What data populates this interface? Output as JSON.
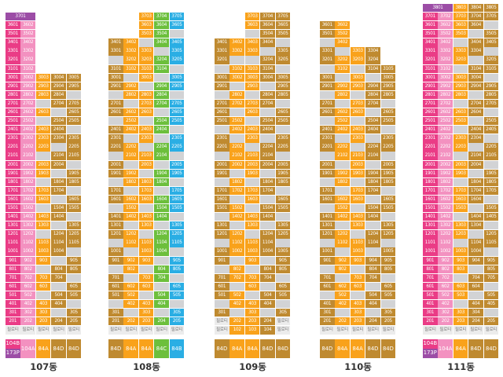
{
  "colors": {
    "pink": "#ea3c86",
    "lightpink": "#f391c0",
    "purple": "#9c4da6",
    "orange": "#f9a21b",
    "brown": "#bf8a30",
    "green": "#6cbf3c",
    "blue": "#2aaee4",
    "grey": "#d2d3d5"
  },
  "pilotis_label": "필로티",
  "buildings": [
    {
      "name": "107동",
      "spans": [
        {
          "label": "3701",
          "floor": 37,
          "cols": [
            0,
            1
          ],
          "color": "purple"
        }
      ],
      "columns": [
        {
          "top": 36,
          "color": "pink",
          "cells": "FFFFFFFFFFFFFFFFFFFFFFFFFFFFFFFFFFFP"
        },
        {
          "top": 36,
          "color": "lightpink",
          "cells": "FFFFFFFFFFFFFFFFFFFFFFFFFFFFFFFFFFFP"
        },
        {
          "top": 30,
          "color": "orange",
          "cells": "FFFGFGFFFGFFGFFGFFGFFFGFFGFFFP"
        },
        {
          "top": 30,
          "color": "brown",
          "cells": "FFFFGFFFGFFGFFGFFGFFFGFFGFFGFP"
        },
        {
          "top": 30,
          "color": "brown",
          "cells": "FFGFFFGFFFGFFGFFGFFFGFFGFFGFFP"
        }
      ],
      "types": [
        {
          "labels": [
            "104B",
            "173P"
          ],
          "colors": [
            "pink",
            "purple"
          ]
        },
        {
          "labels": [
            "104A"
          ],
          "colors": [
            "lightpink"
          ]
        },
        {
          "labels": [
            "84A"
          ],
          "colors": [
            "orange"
          ]
        },
        {
          "labels": [
            "84D"
          ],
          "colors": [
            "brown"
          ]
        },
        {
          "labels": [
            "84D"
          ],
          "colors": [
            "brown"
          ]
        }
      ]
    },
    {
      "name": "108동",
      "spans": [],
      "columns": [
        {
          "top": 34,
          "color": "brown",
          "cells": "FFGFFFGFFGFFFGFFGFFGFFFGFFGFFFGFFP"
        },
        {
          "top": 34,
          "color": "orange",
          "cells": "FFFFGFFGFFFGFFGFFGFFFGFFGFFGFFFGFP"
        },
        {
          "top": 37,
          "color": "orange",
          "cells": "FFFGFFFFGFFFGFFGFFGFFFGFFGFFFGFFGFFFP"
        },
        {
          "top": 37,
          "color": "green",
          "cells": "FFFFGFFGFFFGFFGFFGFFGFFFGFFFGFFGFFGFP"
        },
        {
          "top": 37,
          "color": "blue",
          "cells": "FFGFFFGFFGFFFGFFGFFGFFFGFFFGFFGFFGFFP"
        }
      ],
      "types": [
        {
          "labels": [
            "84D"
          ],
          "colors": [
            "brown"
          ]
        },
        {
          "labels": [
            "84A"
          ],
          "colors": [
            "orange"
          ]
        },
        {
          "labels": [
            "84A"
          ],
          "colors": [
            "orange"
          ]
        },
        {
          "labels": [
            "84C"
          ],
          "colors": [
            "green"
          ]
        },
        {
          "labels": [
            "84B"
          ],
          "colors": [
            "blue"
          ]
        }
      ]
    },
    {
      "name": "109동",
      "spans": [],
      "columns": [
        {
          "top": 34,
          "color": "brown",
          "cells": "FFFGFFGFFFGFFGFFGFFFGFFGFFGFFFGFPP"
        },
        {
          "top": 34,
          "color": "orange",
          "cells": "FFGFFGFFGFFGFFFGFFGFFGFFFGFFGFFGFF"
        },
        {
          "top": 37,
          "color": "orange",
          "cells": "FFGFFGFFFGFFGFFGFFFGFFGFFGFFFGFFGFFFF"
        },
        {
          "top": 37,
          "color": "brown",
          "cells": "FFFFGFFFGFFGFFGFFFGFFGFFGFFFGFFGFFGFF"
        },
        {
          "top": 37,
          "color": "brown",
          "cells": "FFFGFFGFFFGFFGFFGFFFGFFGFFGFFFGFFGFPP"
        }
      ],
      "types": [
        {
          "labels": [
            "84D"
          ],
          "colors": [
            "brown"
          ]
        },
        {
          "labels": [
            "84A"
          ],
          "colors": [
            "orange"
          ]
        },
        {
          "labels": [
            "84A"
          ],
          "colors": [
            "orange"
          ]
        },
        {
          "labels": [
            "84D"
          ],
          "colors": [
            "brown"
          ]
        },
        {
          "labels": [
            "84D"
          ],
          "colors": [
            "brown"
          ]
        }
      ]
    },
    {
      "name": "110동",
      "spans": [],
      "columns": [
        {
          "top": 36,
          "color": "brown",
          "cells": "FFGFFGFFGFFGFFFGFFGFFGFFFGFFGFFGFFFP"
        },
        {
          "top": 36,
          "color": "orange",
          "cells": "FFFGFFGFFGFFFGFFGFFGFFFGFFGFFGFFFGFP"
        },
        {
          "top": 33,
          "color": "orange",
          "cells": "FFGFFGFFGFFGFFFGFFGFFGFFFGFFGFFFP"
        },
        {
          "top": 33,
          "color": "brown",
          "cells": "FFFGFFFGFFGFFGFFFGFFGFFGFFFGFFGFP"
        },
        {
          "top": 31,
          "color": "brown",
          "cells": "FFFFGFFGFFGFFFGFFGFFGFFFGFFGFFP"
        }
      ],
      "types": [
        {
          "labels": [
            "84D"
          ],
          "colors": [
            "brown"
          ]
        },
        {
          "labels": [
            "84A"
          ],
          "colors": [
            "orange"
          ]
        },
        {
          "labels": [
            "84A"
          ],
          "colors": [
            "orange"
          ]
        },
        {
          "labels": [
            "84D"
          ],
          "colors": [
            "brown"
          ]
        },
        {
          "labels": [
            "84D"
          ],
          "colors": [
            "brown"
          ]
        }
      ]
    },
    {
      "name": "111동",
      "spans": [
        {
          "label": "3801",
          "floor": 38,
          "cols": [
            0,
            1
          ],
          "color": "purple"
        }
      ],
      "columns": [
        {
          "top": 37,
          "color": "pink",
          "cells": "FFFFFFFFFFFFFFFFFFFFFFFFFFFFFFFFFFFFP"
        },
        {
          "top": 37,
          "color": "lightpink",
          "cells": "FFFFFFFFFFFFFFFFFFFFFFFFFFFFFFFFFFFFP"
        },
        {
          "top": 38,
          "color": "orange",
          "cells": "FFFFGFFGFFFGFFGFFGFFGFFFGFFGFFFGFFGFFP"
        },
        {
          "top": 38,
          "color": "brown",
          "cells": "FFFGFFGFFFGFFGFFGFFGFFFGFFGFFFGFFGFFFP"
        },
        {
          "top": 38,
          "color": "brown",
          "cells": "FFGFFGFFGFFFGFFGFFGFFFGFFGFFGFFFGFFGFP"
        }
      ],
      "types": [
        {
          "labels": [
            "104B",
            "173P"
          ],
          "colors": [
            "pink",
            "purple"
          ]
        },
        {
          "labels": [
            "104A"
          ],
          "colors": [
            "lightpink"
          ]
        },
        {
          "labels": [
            "84A"
          ],
          "colors": [
            "orange"
          ]
        },
        {
          "labels": [
            "84D"
          ],
          "colors": [
            "brown"
          ]
        },
        {
          "labels": [
            "84D"
          ],
          "colors": [
            "brown"
          ]
        }
      ]
    }
  ]
}
